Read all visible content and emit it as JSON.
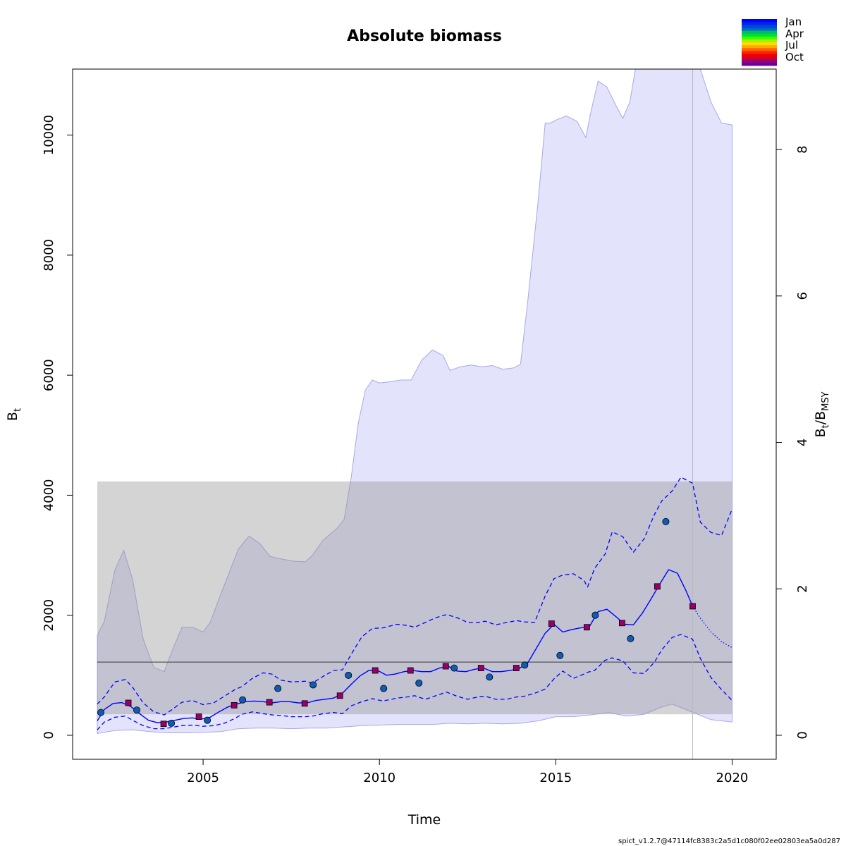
{
  "chart_data": {
    "type": "line",
    "title": "Absolute biomass",
    "xlabel": "Time",
    "ylabel_left": {
      "main": "B",
      "sub": "t"
    },
    "ylabel_right": {
      "main1": "B",
      "sub1": "t",
      "slash": "/",
      "main2": "B",
      "sub2": "MSY"
    },
    "footer": "spict_v1.2.7@47114fc8383c2a5d1c080f02ee02803ea5a0d287",
    "xlim": [
      2001.3,
      2021.25
    ],
    "ylim": [
      -400,
      11100
    ],
    "x_ticks": [
      2005,
      2010,
      2015,
      2020
    ],
    "x_tick_labels": [
      "2005",
      "2010",
      "2015",
      "2020"
    ],
    "y_ticks": [
      0,
      2000,
      4000,
      6000,
      8000,
      10000
    ],
    "y_tick_labels": [
      "0",
      "2000",
      "4000",
      "6000",
      "8000",
      "10000"
    ],
    "y2_ticks": [
      0,
      2,
      4,
      6,
      8
    ],
    "y2_tick_labels": [
      "0",
      "2",
      "4",
      "6",
      "8"
    ],
    "y2_scale_bmsy": 1220,
    "bmsy_line": 1220,
    "bmsy_band": [
      350,
      4230
    ],
    "band_x": [
      2002.0,
      2020.0
    ],
    "last_obs_time": 2018.88,
    "legend": {
      "position": "top-right",
      "labels": [
        "Jan",
        "Apr",
        "Jul",
        "Oct"
      ],
      "colors": [
        "#0000ff",
        "#0022ee",
        "#0044dd",
        "#0066cc",
        "#00bb66",
        "#00dd33",
        "#33ff00",
        "#aaee00",
        "#ffdd00",
        "#ffaa00",
        "#ff6600",
        "#ff2200",
        "#ee0000",
        "#cc0033",
        "#990077",
        "#660099"
      ]
    },
    "colors": {
      "outer_ci_fill": "#e3e3fb",
      "outer_ci_line": "#a8a8e8",
      "band_fill": "#8e8e8e",
      "bmsy_line": "#3a3a3a",
      "estimate": "#0000ff",
      "ci": "#0000ff",
      "obs_circle": "#0f5cb8",
      "obs_square": "#990066",
      "vline": "#b8b8b8"
    },
    "outer_ci_upper": {
      "x": [
        2002.0,
        2002.2,
        2002.5,
        2002.75,
        2003.0,
        2003.3,
        2003.6,
        2003.9,
        2004.1,
        2004.4,
        2004.7,
        2005.0,
        2005.2,
        2005.5,
        2005.8,
        2006.0,
        2006.3,
        2006.6,
        2006.9,
        2007.2,
        2007.6,
        2007.9,
        2008.1,
        2008.4,
        2008.8,
        2009.0,
        2009.2,
        2009.4,
        2009.6,
        2009.8,
        2010.0,
        2010.3,
        2010.6,
        2010.9,
        2011.2,
        2011.5,
        2011.8,
        2012.0,
        2012.3,
        2012.6,
        2012.9,
        2013.2,
        2013.5,
        2013.8,
        2014.0,
        2014.2,
        2014.5,
        2014.7,
        2014.85,
        2015.0,
        2015.3,
        2015.6,
        2015.85,
        2016.0,
        2016.2,
        2016.45,
        2016.7,
        2016.9,
        2017.1,
        2017.3,
        2017.5,
        2017.8,
        2018.2,
        2018.5,
        2018.9,
        2019.1,
        2019.4,
        2019.7,
        2020.0
      ],
      "y": [
        1660,
        1900,
        2750,
        3080,
        2600,
        1600,
        1130,
        1060,
        1380,
        1800,
        1800,
        1720,
        1880,
        2350,
        2800,
        3100,
        3320,
        3200,
        2980,
        2940,
        2900,
        2890,
        3000,
        3250,
        3450,
        3600,
        4300,
        5200,
        5750,
        5920,
        5870,
        5890,
        5920,
        5920,
        6250,
        6420,
        6330,
        6080,
        6140,
        6170,
        6140,
        6160,
        6100,
        6120,
        6180,
        7200,
        8900,
        10200,
        10200,
        10250,
        10320,
        10230,
        9960,
        10400,
        10900,
        10800,
        10500,
        10280,
        10550,
        11250,
        11500,
        11500,
        11500,
        11450,
        11300,
        11100,
        10550,
        10200,
        10170
      ]
    },
    "outer_ci_lower": {
      "x": [
        2002.0,
        2002.5,
        2003.0,
        2003.5,
        2004.0,
        2004.5,
        2005.0,
        2005.5,
        2006.0,
        2006.5,
        2007.0,
        2007.5,
        2008.0,
        2008.5,
        2009.0,
        2009.5,
        2010.0,
        2010.5,
        2011.0,
        2011.5,
        2012.0,
        2012.5,
        2013.0,
        2013.5,
        2014.0,
        2014.5,
        2015.0,
        2015.5,
        2016.0,
        2016.5,
        2017.0,
        2017.5,
        2018.0,
        2018.3,
        2018.9,
        2019.4,
        2020.0
      ],
      "y": [
        30,
        80,
        90,
        60,
        40,
        40,
        50,
        60,
        110,
        120,
        120,
        110,
        120,
        120,
        140,
        160,
        170,
        180,
        180,
        180,
        200,
        190,
        200,
        190,
        200,
        240,
        310,
        310,
        340,
        380,
        320,
        350,
        470,
        520,
        380,
        260,
        220
      ]
    },
    "series": [
      {
        "name": "",
        "style": "solid",
        "x": [
          2002.0,
          2002.2,
          2002.45,
          2002.7,
          2002.95,
          2003.2,
          2003.45,
          2003.7,
          2003.95,
          2004.2,
          2004.45,
          2004.7,
          2004.95,
          2005.2,
          2005.45,
          2005.7,
          2005.95,
          2006.2,
          2006.45,
          2006.7,
          2006.95,
          2007.2,
          2007.45,
          2007.7,
          2007.95,
          2008.2,
          2008.45,
          2008.7,
          2008.95,
          2009.2,
          2009.45,
          2009.7,
          2009.95,
          2010.2,
          2010.45,
          2010.7,
          2010.95,
          2011.2,
          2011.45,
          2011.7,
          2011.95,
          2012.2,
          2012.45,
          2012.7,
          2012.95,
          2013.2,
          2013.45,
          2013.7,
          2013.95,
          2014.2,
          2014.45,
          2014.7,
          2014.95,
          2015.2,
          2015.45,
          2015.7,
          2015.95,
          2016.2,
          2016.45,
          2016.7,
          2016.95,
          2017.2,
          2017.45,
          2017.7,
          2017.95,
          2018.2,
          2018.45,
          2018.7,
          2018.88
        ],
        "y": [
          240,
          430,
          530,
          545,
          480,
          360,
          250,
          210,
          220,
          250,
          280,
          290,
          270,
          300,
          390,
          470,
          520,
          560,
          570,
          560,
          540,
          560,
          560,
          540,
          540,
          580,
          600,
          620,
          700,
          850,
          990,
          1080,
          1080,
          1000,
          1020,
          1060,
          1080,
          1060,
          1060,
          1120,
          1150,
          1070,
          1060,
          1100,
          1120,
          1060,
          1060,
          1080,
          1110,
          1200,
          1450,
          1700,
          1850,
          1720,
          1760,
          1790,
          1810,
          2060,
          2100,
          1980,
          1850,
          1840,
          2030,
          2270,
          2520,
          2760,
          2700,
          2400,
          2150
        ]
      },
      {
        "name": "",
        "style": "dotted",
        "x": [
          2018.88,
          2019.1,
          2019.4,
          2019.7,
          2020.0
        ],
        "y": [
          2150,
          1950,
          1720,
          1560,
          1460
        ]
      },
      {
        "name": "",
        "style": "dashed",
        "x": [
          2002.0,
          2002.2,
          2002.5,
          2002.8,
          2003.0,
          2003.3,
          2003.6,
          2003.9,
          2004.1,
          2004.4,
          2004.7,
          2005.0,
          2005.3,
          2005.6,
          2005.9,
          2006.1,
          2006.4,
          2006.7,
          2006.95,
          2007.2,
          2007.5,
          2007.9,
          2008.1,
          2008.4,
          2008.7,
          2008.95,
          2009.2,
          2009.5,
          2009.8,
          2010.1,
          2010.5,
          2010.8,
          2011.0,
          2011.3,
          2011.6,
          2011.9,
          2012.2,
          2012.5,
          2012.8,
          2013.0,
          2013.3,
          2013.6,
          2013.9,
          2014.1,
          2014.4,
          2014.7,
          2014.95,
          2015.2,
          2015.5,
          2015.8,
          2015.9,
          2016.1,
          2016.4,
          2016.6,
          2016.9,
          2017.2,
          2017.5,
          2017.8,
          2018.0,
          2018.3,
          2018.55,
          2018.88,
          2019.1,
          2019.4,
          2019.7,
          2020.0
        ],
        "y": [
          520,
          640,
          890,
          930,
          800,
          540,
          390,
          340,
          420,
          550,
          580,
          510,
          540,
          650,
          760,
          810,
          950,
          1040,
          1020,
          920,
          890,
          900,
          870,
          980,
          1080,
          1090,
          1350,
          1640,
          1780,
          1790,
          1850,
          1830,
          1800,
          1880,
          1960,
          2010,
          1960,
          1880,
          1880,
          1900,
          1840,
          1880,
          1910,
          1890,
          1880,
          2320,
          2610,
          2670,
          2690,
          2580,
          2470,
          2780,
          3020,
          3390,
          3310,
          3050,
          3270,
          3680,
          3900,
          4070,
          4300,
          4200,
          3550,
          3380,
          3330,
          3770
        ]
      },
      {
        "name": "",
        "style": "dashed",
        "x": [
          2002.0,
          2002.2,
          2002.5,
          2002.8,
          2003.0,
          2003.3,
          2003.6,
          2003.9,
          2004.1,
          2004.4,
          2004.7,
          2005.0,
          2005.3,
          2005.6,
          2005.9,
          2006.1,
          2006.4,
          2006.7,
          2006.95,
          2007.2,
          2007.5,
          2007.9,
          2008.1,
          2008.4,
          2008.7,
          2008.95,
          2009.2,
          2009.5,
          2009.8,
          2010.1,
          2010.5,
          2010.8,
          2011.0,
          2011.3,
          2011.6,
          2011.9,
          2012.2,
          2012.5,
          2012.8,
          2013.0,
          2013.3,
          2013.6,
          2013.9,
          2014.1,
          2014.4,
          2014.7,
          2014.95,
          2015.2,
          2015.5,
          2015.8,
          2015.9,
          2016.1,
          2016.4,
          2016.6,
          2016.9,
          2017.2,
          2017.5,
          2017.8,
          2018.0,
          2018.3,
          2018.55,
          2018.88,
          2019.1,
          2019.4,
          2019.7,
          2020.0
        ],
        "y": [
          90,
          220,
          300,
          320,
          250,
          160,
          110,
          110,
          130,
          160,
          170,
          150,
          160,
          200,
          280,
          350,
          390,
          360,
          340,
          330,
          310,
          310,
          320,
          360,
          380,
          360,
          490,
          560,
          610,
          570,
          620,
          640,
          660,
          600,
          660,
          720,
          650,
          600,
          640,
          650,
          600,
          600,
          640,
          650,
          700,
          770,
          940,
          1070,
          950,
          1020,
          1050,
          1080,
          1250,
          1290,
          1240,
          1040,
          1030,
          1220,
          1420,
          1630,
          1680,
          1600,
          1280,
          960,
          760,
          580
        ]
      }
    ],
    "obs_circles": {
      "x": [
        2002.1,
        2003.12,
        2004.1,
        2005.12,
        2006.12,
        2007.12,
        2008.12,
        2009.12,
        2010.12,
        2011.12,
        2012.12,
        2013.12,
        2014.12,
        2015.12,
        2016.12,
        2017.12,
        2018.12
      ],
      "y": [
        380,
        420,
        200,
        250,
        590,
        780,
        840,
        1000,
        780,
        870,
        1120,
        970,
        1170,
        1330,
        2000,
        1610,
        3560
      ]
    },
    "obs_squares": {
      "x": [
        2002.88,
        2003.88,
        2004.88,
        2005.88,
        2006.88,
        2007.88,
        2008.88,
        2009.88,
        2010.88,
        2011.88,
        2012.88,
        2013.88,
        2014.88,
        2015.88,
        2016.88,
        2017.88,
        2018.88
      ],
      "y": [
        540,
        190,
        310,
        500,
        550,
        530,
        660,
        1080,
        1080,
        1150,
        1120,
        1120,
        1860,
        1800,
        1870,
        2480,
        2150
      ]
    }
  }
}
